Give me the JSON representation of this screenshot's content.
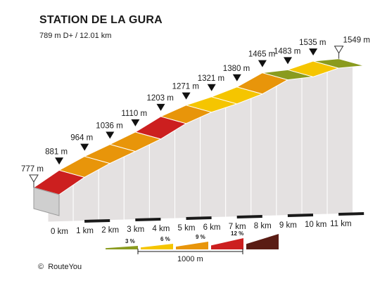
{
  "header": {
    "title": "STATION DE LA GURA",
    "subtitle": "789 m D+ / 12.01 km"
  },
  "footer": {
    "copyright_symbol": "©",
    "brand": "RouteYou"
  },
  "chart_data": {
    "type": "area",
    "title": "STATION DE LA GURA",
    "subtitle": "789 m D+ / 12.01 km",
    "x_unit": "km",
    "y_unit": "m",
    "x_ticks": [
      "0 km",
      "1 km",
      "2 km",
      "3 km",
      "4 km",
      "5 km",
      "6 km",
      "7 km",
      "8 km",
      "9 km",
      "10 km",
      "11 km"
    ],
    "points": [
      {
        "km": 0,
        "elevation": 777,
        "label": "777 m",
        "marker": "start"
      },
      {
        "km": 1,
        "elevation": 881,
        "label": "881 m",
        "marker": "arrow"
      },
      {
        "km": 2,
        "elevation": 964,
        "label": "964 m",
        "marker": "arrow"
      },
      {
        "km": 3,
        "elevation": 1036,
        "label": "1036 m",
        "marker": "arrow"
      },
      {
        "km": 4,
        "elevation": 1110,
        "label": "1110 m",
        "marker": "arrow"
      },
      {
        "km": 5,
        "elevation": 1203,
        "label": "1203 m",
        "marker": "arrow"
      },
      {
        "km": 6,
        "elevation": 1271,
        "label": "1271 m",
        "marker": "arrow"
      },
      {
        "km": 7,
        "elevation": 1321,
        "label": "1321 m",
        "marker": "arrow"
      },
      {
        "km": 8,
        "elevation": 1380,
        "label": "1380 m",
        "marker": "arrow"
      },
      {
        "km": 9,
        "elevation": 1465,
        "label": "1465 m",
        "marker": "arrow"
      },
      {
        "km": 10,
        "elevation": 1483,
        "label": "1483 m",
        "marker": "arrow"
      },
      {
        "km": 11,
        "elevation": 1535,
        "label": "1535 m",
        "marker": "arrow"
      },
      {
        "km": 12.01,
        "elevation": 1549,
        "label": "1549 m",
        "marker": "end"
      }
    ],
    "segments": [
      {
        "from_km": 0,
        "to_km": 1,
        "grade": 12
      },
      {
        "from_km": 1,
        "to_km": 2,
        "grade": 9
      },
      {
        "from_km": 2,
        "to_km": 3,
        "grade": 9
      },
      {
        "from_km": 3,
        "to_km": 4,
        "grade": 9
      },
      {
        "from_km": 4,
        "to_km": 5,
        "grade": 12
      },
      {
        "from_km": 5,
        "to_km": 6,
        "grade": 9
      },
      {
        "from_km": 6,
        "to_km": 7,
        "grade": 6
      },
      {
        "from_km": 7,
        "to_km": 8,
        "grade": 6
      },
      {
        "from_km": 8,
        "to_km": 9,
        "grade": 9
      },
      {
        "from_km": 9,
        "to_km": 10,
        "grade": 3
      },
      {
        "from_km": 10,
        "to_km": 11,
        "grade": 6
      },
      {
        "from_km": 11,
        "to_km": 12.01,
        "grade": 3
      }
    ],
    "legend": {
      "items": [
        {
          "label": "3 %",
          "color": "#8a9b1e"
        },
        {
          "label": "6 %",
          "color": "#f5c500"
        },
        {
          "label": "9 %",
          "color": "#e8950a"
        },
        {
          "label": "12 %",
          "color": "#cc1f1f"
        },
        {
          "label": "",
          "color": "#5a1c14"
        }
      ],
      "scale_label": "1000 m"
    },
    "colors": {
      "3": "#8a9b1e",
      "6": "#f5c500",
      "9": "#e8950a",
      "12": "#cc1f1f"
    }
  }
}
